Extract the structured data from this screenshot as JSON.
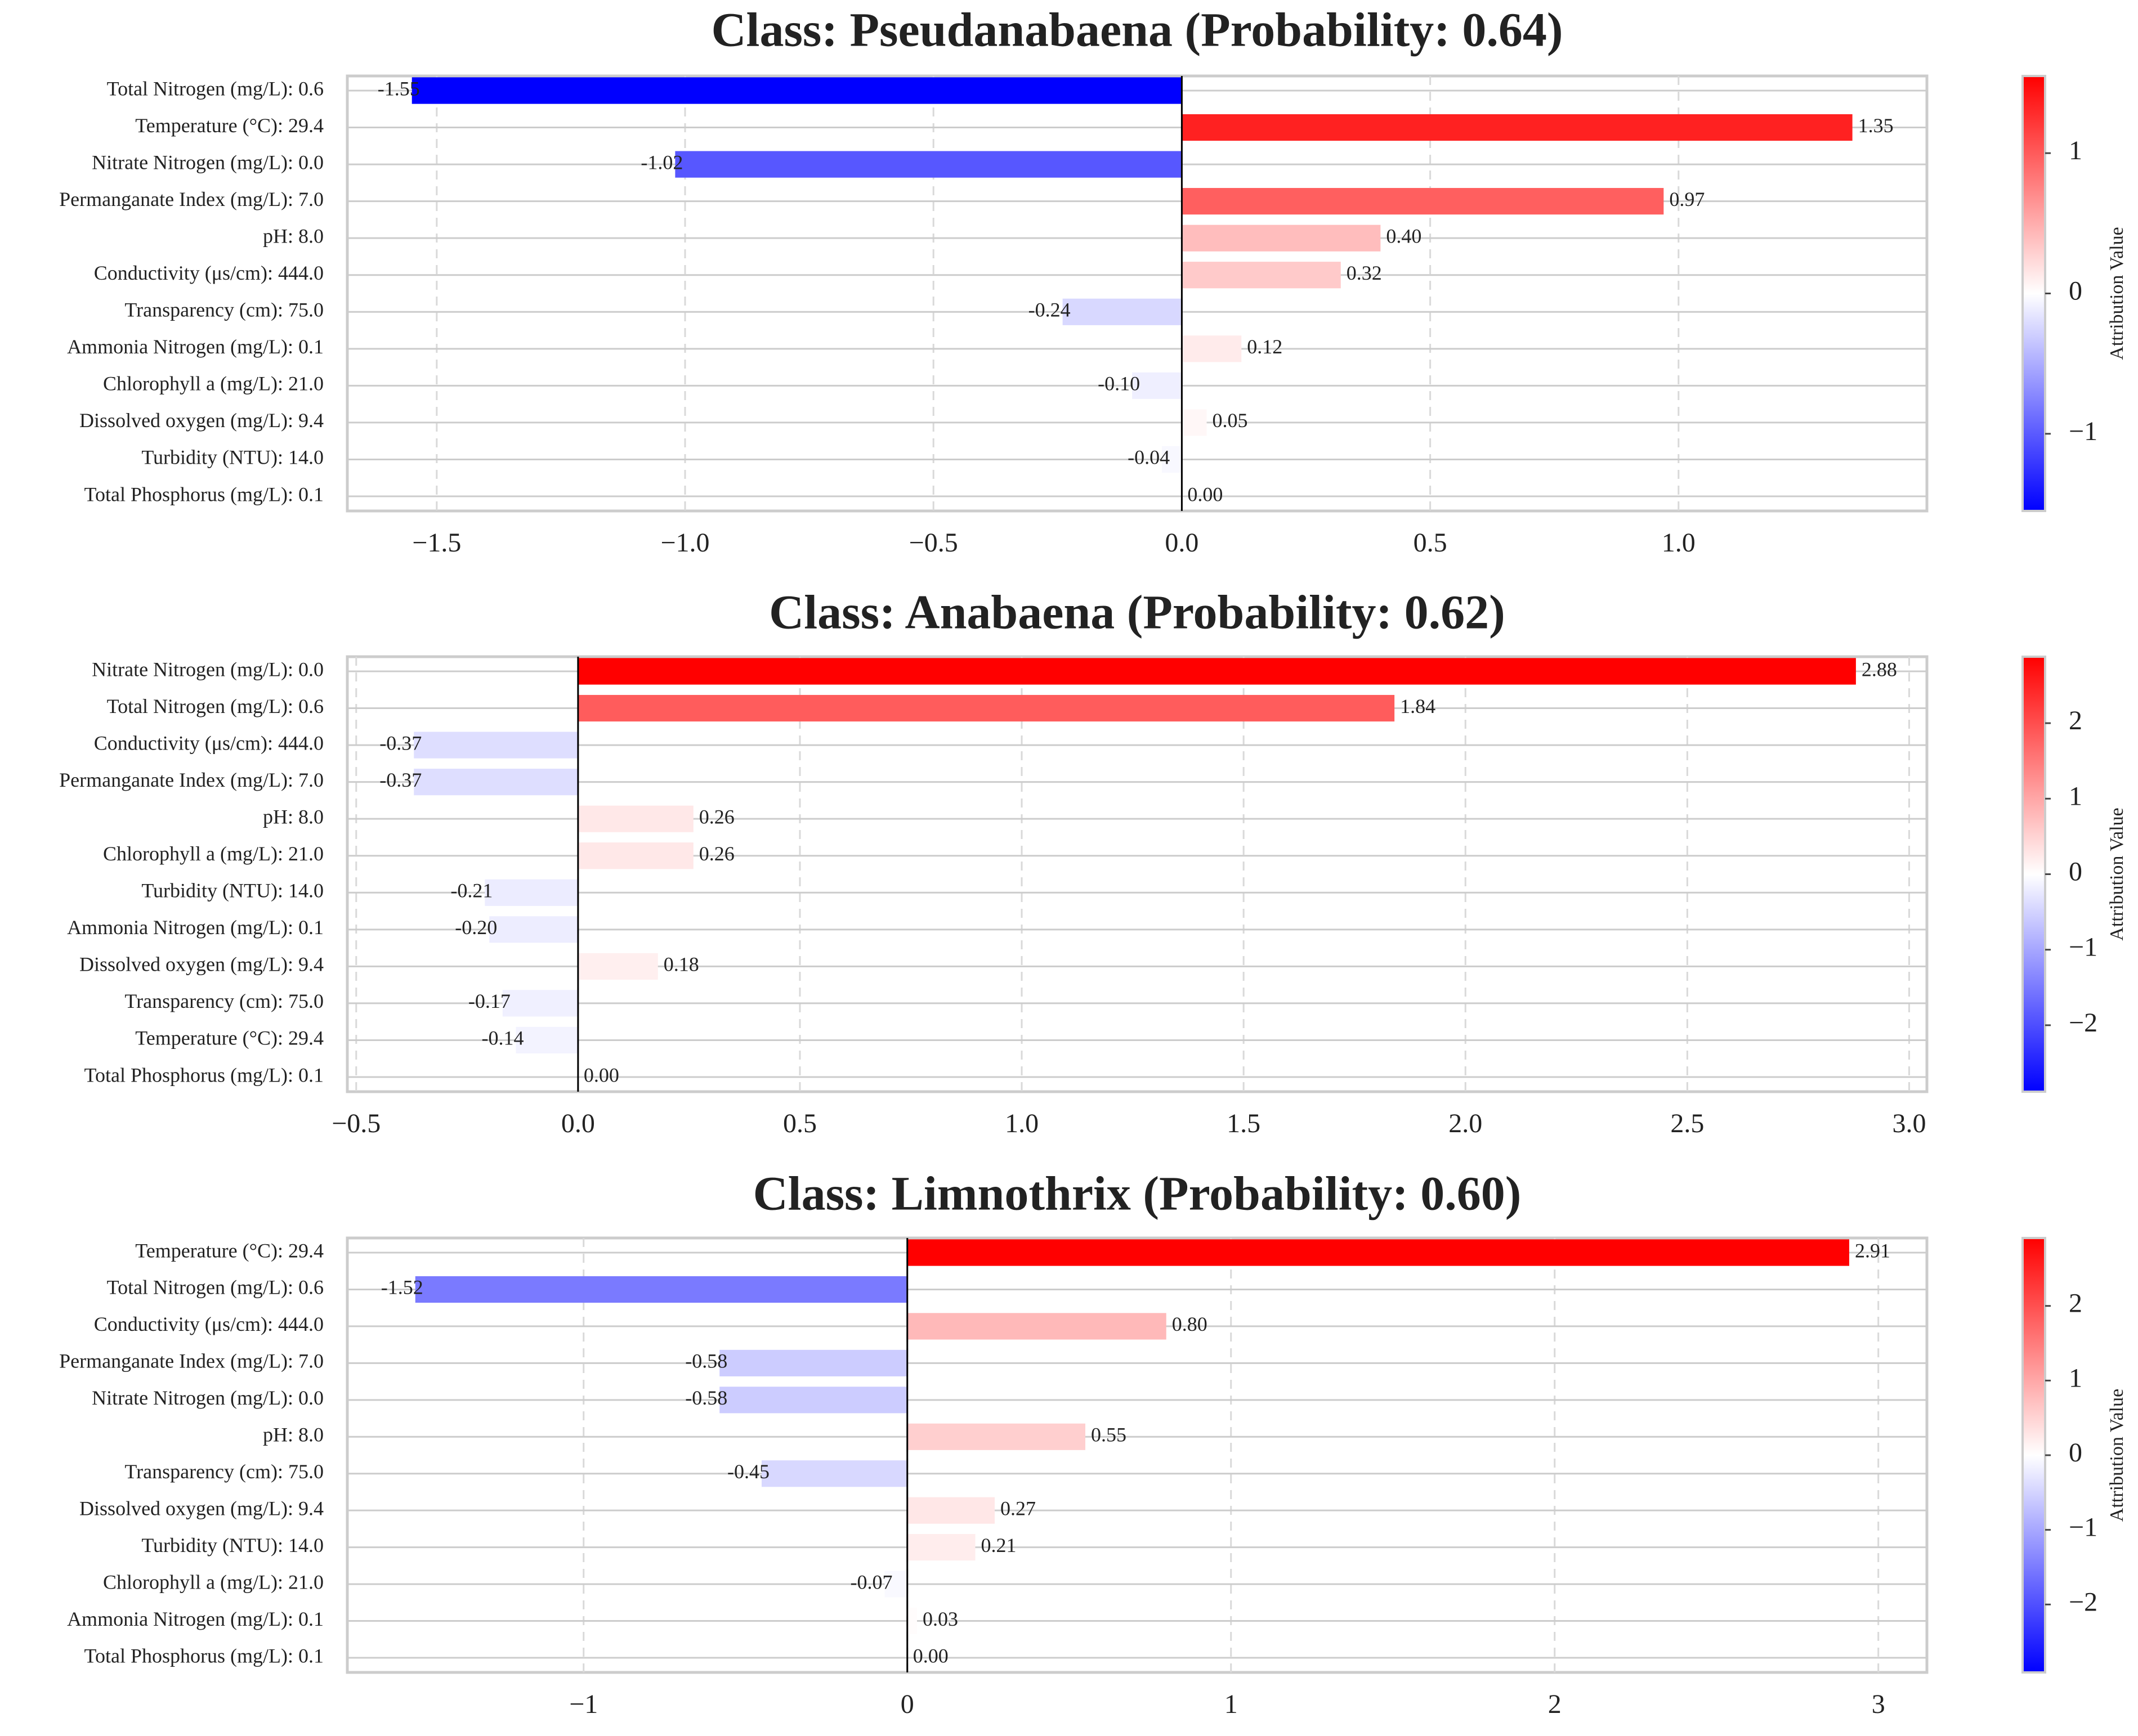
{
  "colors": {
    "positive": "#ff0000",
    "negative": "#0000ff",
    "zero_line": "#000000",
    "gridline": "#d9d9d9",
    "frame": "#cccccc"
  },
  "chart_data": [
    {
      "type": "bar",
      "orientation": "horizontal",
      "title": "Class: Pseudanabaena (Probability: 0.64)",
      "xlabel": "",
      "ylabel": "",
      "xlim": [
        -1.68,
        1.5
      ],
      "xticks": [
        -1.5,
        -1.0,
        -0.5,
        0.0,
        0.5,
        1.0
      ],
      "xtick_labels": [
        "−1.5",
        "−1.0",
        "−0.5",
        "0.0",
        "0.5",
        "1.0"
      ],
      "grid": "vertical dashed",
      "categories": [
        "Total Nitrogen (mg/L): 0.6",
        "Temperature (°C): 29.4",
        "Nitrate Nitrogen (mg/L): 0.0",
        "Permanganate Index (mg/L): 7.0",
        "pH: 8.0",
        "Conductivity (μs/cm): 444.0",
        "Transparency (cm): 75.0",
        "Ammonia Nitrogen (mg/L): 0.1",
        "Chlorophyll a (mg/L): 21.0",
        "Dissolved oxygen (mg/L): 9.4",
        "Turbidity (NTU): 14.0",
        "Total Phosphorus (mg/L): 0.1"
      ],
      "values": [
        -1.55,
        1.35,
        -1.02,
        0.97,
        0.4,
        0.32,
        -0.24,
        0.12,
        -0.1,
        0.05,
        -0.04,
        0.0
      ],
      "value_labels": [
        "-1.55",
        "1.35",
        "-1.02",
        "0.97",
        "0.40",
        "0.32",
        "-0.24",
        "0.12",
        "-0.10",
        "0.05",
        "-0.04",
        "0.00"
      ],
      "colorbar": {
        "label": "Attribution Value",
        "vmin": -1.55,
        "vmax": 1.55,
        "ticks": [
          -1,
          0,
          1
        ],
        "tick_labels": [
          "−1",
          "0",
          "1"
        ]
      }
    },
    {
      "type": "bar",
      "orientation": "horizontal",
      "title": "Class: Anabaena (Probability: 0.62)",
      "xlabel": "",
      "ylabel": "",
      "xlim": [
        -0.52,
        3.04
      ],
      "xticks": [
        -0.5,
        0.0,
        0.5,
        1.0,
        1.5,
        2.0,
        2.5,
        3.0
      ],
      "xtick_labels": [
        "−0.5",
        "0.0",
        "0.5",
        "1.0",
        "1.5",
        "2.0",
        "2.5",
        "3.0"
      ],
      "grid": "vertical dashed",
      "categories": [
        "Nitrate Nitrogen (mg/L): 0.0",
        "Total Nitrogen (mg/L): 0.6",
        "Conductivity (μs/cm): 444.0",
        "Permanganate Index (mg/L): 7.0",
        "pH: 8.0",
        "Chlorophyll a (mg/L): 21.0",
        "Turbidity (NTU): 14.0",
        "Ammonia Nitrogen (mg/L): 0.1",
        "Dissolved oxygen (mg/L): 9.4",
        "Transparency (cm): 75.0",
        "Temperature (°C): 29.4",
        "Total Phosphorus (mg/L): 0.1"
      ],
      "values": [
        2.88,
        1.84,
        -0.37,
        -0.37,
        0.26,
        0.26,
        -0.21,
        -0.2,
        0.18,
        -0.17,
        -0.14,
        0.0
      ],
      "value_labels": [
        "2.88",
        "1.84",
        "-0.37",
        "-0.37",
        "0.26",
        "0.26",
        "-0.21",
        "-0.20",
        "0.18",
        "-0.17",
        "-0.14",
        "0.00"
      ],
      "colorbar": {
        "label": "Attribution Value",
        "vmin": -2.88,
        "vmax": 2.88,
        "ticks": [
          -2,
          -1,
          0,
          1,
          2
        ],
        "tick_labels": [
          "−2",
          "−1",
          "0",
          "1",
          "2"
        ]
      }
    },
    {
      "type": "bar",
      "orientation": "horizontal",
      "title": "Class: Limnothrix (Probability: 0.60)",
      "xlabel": "",
      "ylabel": "",
      "xlim": [
        -1.73,
        3.15
      ],
      "xticks": [
        -1,
        0,
        1,
        2,
        3
      ],
      "xtick_labels": [
        "−1",
        "0",
        "1",
        "2",
        "3"
      ],
      "grid": "vertical dashed",
      "categories": [
        "Temperature (°C): 29.4",
        "Total Nitrogen (mg/L): 0.6",
        "Conductivity (μs/cm): 444.0",
        "Permanganate Index (mg/L): 7.0",
        "Nitrate Nitrogen (mg/L): 0.0",
        "pH: 8.0",
        "Transparency (cm): 75.0",
        "Dissolved oxygen (mg/L): 9.4",
        "Turbidity (NTU): 14.0",
        "Chlorophyll a (mg/L): 21.0",
        "Ammonia Nitrogen (mg/L): 0.1",
        "Total Phosphorus (mg/L): 0.1"
      ],
      "values": [
        2.91,
        -1.52,
        0.8,
        -0.58,
        -0.58,
        0.55,
        -0.45,
        0.27,
        0.21,
        -0.07,
        0.03,
        0.0
      ],
      "value_labels": [
        "2.91",
        "-1.52",
        "0.80",
        "-0.58",
        "-0.58",
        "0.55",
        "-0.45",
        "0.27",
        "0.21",
        "-0.07",
        "0.03",
        "0.00"
      ],
      "colorbar": {
        "label": "Attribution Value",
        "vmin": -2.91,
        "vmax": 2.91,
        "ticks": [
          -2,
          -1,
          0,
          1,
          2
        ],
        "tick_labels": [
          "−2",
          "−1",
          "0",
          "1",
          "2"
        ]
      }
    }
  ]
}
